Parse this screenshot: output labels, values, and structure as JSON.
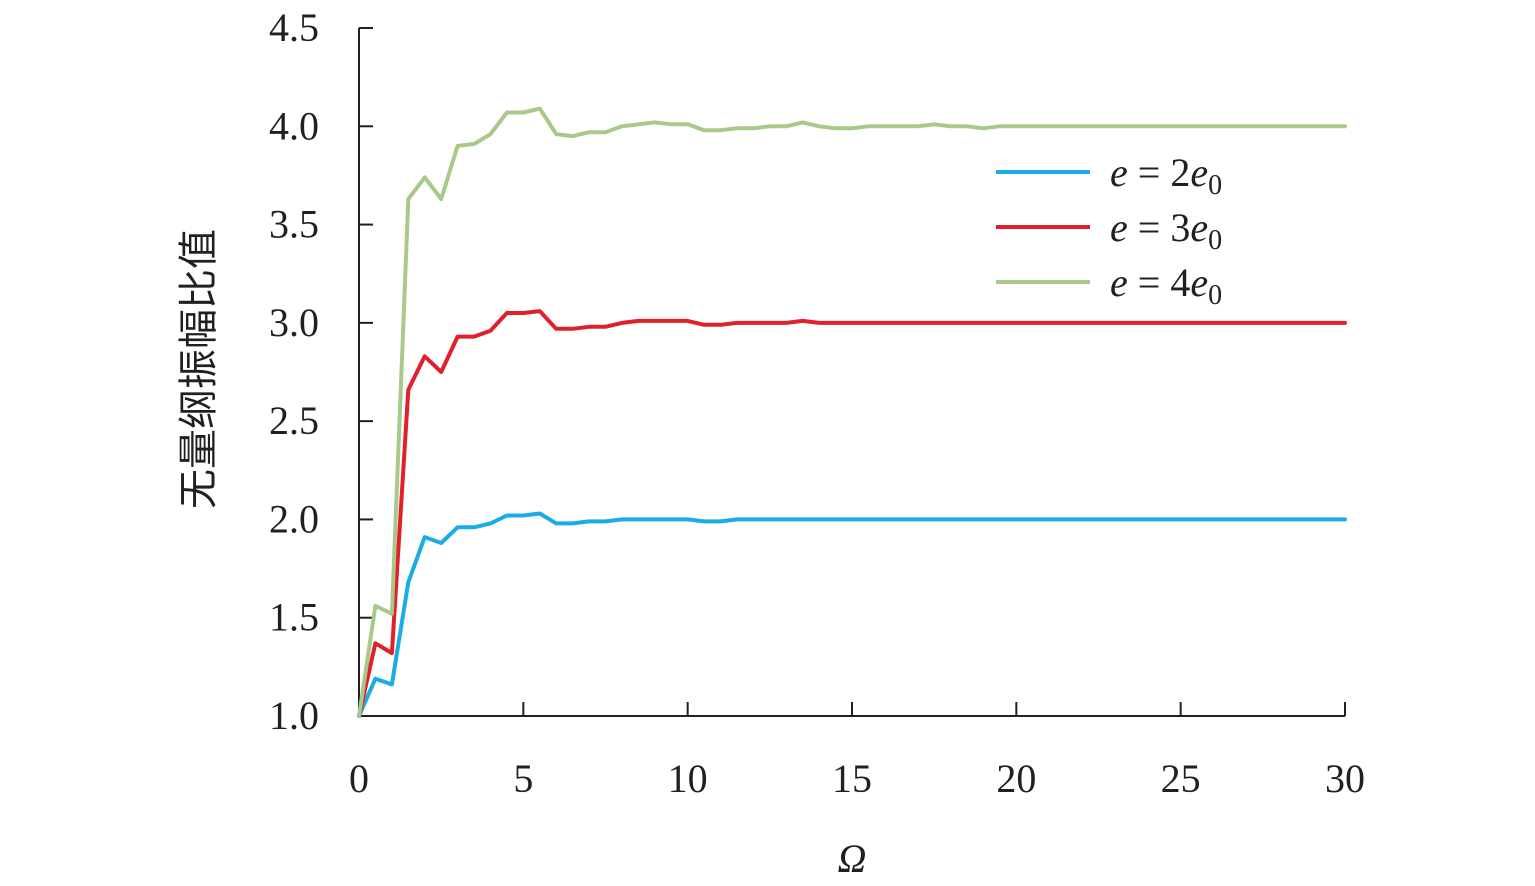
{
  "chart_data": {
    "type": "line",
    "title": "",
    "xlabel": "Ω",
    "ylabel": "无量纲振幅比值",
    "xlim": [
      0,
      30
    ],
    "ylim": [
      1.0,
      4.5
    ],
    "xticks": [
      0,
      5,
      10,
      15,
      20,
      25,
      30
    ],
    "xtick_labels": [
      "0",
      "5",
      "10",
      "15",
      "20",
      "25",
      "30"
    ],
    "yticks": [
      1.0,
      1.5,
      2.0,
      2.5,
      3.0,
      3.5,
      4.0,
      4.5
    ],
    "ytick_labels": [
      "1.0",
      "1.5",
      "2.0",
      "2.5",
      "3.0",
      "3.5",
      "4.0",
      "4.5"
    ],
    "grid": false,
    "legend_position": "top-right",
    "x": [
      0,
      0.5,
      1,
      1.5,
      2,
      2.5,
      3,
      3.5,
      4,
      4.5,
      5,
      5.5,
      6,
      6.5,
      7,
      7.5,
      8,
      8.5,
      9,
      9.5,
      10,
      10.5,
      11,
      11.5,
      12,
      12.5,
      13,
      13.5,
      14,
      14.5,
      15,
      15.5,
      16,
      16.5,
      17,
      17.5,
      18,
      18.5,
      19,
      19.5,
      20,
      20.5,
      21,
      21.5,
      22,
      22.5,
      23,
      23.5,
      24,
      24.5,
      25,
      25.5,
      26,
      26.5,
      27,
      27.5,
      28,
      28.5,
      29,
      29.5,
      30
    ],
    "series": [
      {
        "legend_var": "e",
        "legend_eq": " = ",
        "legend_coef": "2",
        "legend_base": "e",
        "legend_sub": "0",
        "color": "#1aade4",
        "values": [
          1.0,
          1.19,
          1.16,
          1.68,
          1.91,
          1.88,
          1.96,
          1.96,
          1.98,
          2.02,
          2.02,
          2.03,
          1.98,
          1.98,
          1.99,
          1.99,
          2.0,
          2.0,
          2.0,
          2.0,
          2.0,
          1.99,
          1.99,
          2.0,
          2.0,
          2.0,
          2.0,
          2.0,
          2.0,
          2.0,
          2.0,
          2.0,
          2.0,
          2.0,
          2.0,
          2.0,
          2.0,
          2.0,
          2.0,
          2.0,
          2.0,
          2.0,
          2.0,
          2.0,
          2.0,
          2.0,
          2.0,
          2.0,
          2.0,
          2.0,
          2.0,
          2.0,
          2.0,
          2.0,
          2.0,
          2.0,
          2.0,
          2.0,
          2.0,
          2.0,
          2.0
        ]
      },
      {
        "legend_var": "e",
        "legend_eq": " = ",
        "legend_coef": "3",
        "legend_base": "e",
        "legend_sub": "0",
        "color": "#e0202a",
        "values": [
          1.0,
          1.37,
          1.32,
          2.66,
          2.83,
          2.75,
          2.93,
          2.93,
          2.96,
          3.05,
          3.05,
          3.06,
          2.97,
          2.97,
          2.98,
          2.98,
          3.0,
          3.01,
          3.01,
          3.01,
          3.01,
          2.99,
          2.99,
          3.0,
          3.0,
          3.0,
          3.0,
          3.01,
          3.0,
          3.0,
          3.0,
          3.0,
          3.0,
          3.0,
          3.0,
          3.0,
          3.0,
          3.0,
          3.0,
          3.0,
          3.0,
          3.0,
          3.0,
          3.0,
          3.0,
          3.0,
          3.0,
          3.0,
          3.0,
          3.0,
          3.0,
          3.0,
          3.0,
          3.0,
          3.0,
          3.0,
          3.0,
          3.0,
          3.0,
          3.0,
          3.0
        ]
      },
      {
        "legend_var": "e",
        "legend_eq": " = ",
        "legend_coef": "4",
        "legend_base": "e",
        "legend_sub": "0",
        "color": "#a8c98a",
        "values": [
          1.0,
          1.56,
          1.52,
          3.63,
          3.74,
          3.63,
          3.9,
          3.91,
          3.96,
          4.07,
          4.07,
          4.09,
          3.96,
          3.95,
          3.97,
          3.97,
          4.0,
          4.01,
          4.02,
          4.01,
          4.01,
          3.98,
          3.98,
          3.99,
          3.99,
          4.0,
          4.0,
          4.02,
          4.0,
          3.99,
          3.99,
          4.0,
          4.0,
          4.0,
          4.0,
          4.01,
          4.0,
          4.0,
          3.99,
          4.0,
          4.0,
          4.0,
          4.0,
          4.0,
          4.0,
          4.0,
          4.0,
          4.0,
          4.0,
          4.0,
          4.0,
          4.0,
          4.0,
          4.0,
          4.0,
          4.0,
          4.0,
          4.0,
          4.0,
          4.0,
          4.0
        ]
      }
    ]
  }
}
